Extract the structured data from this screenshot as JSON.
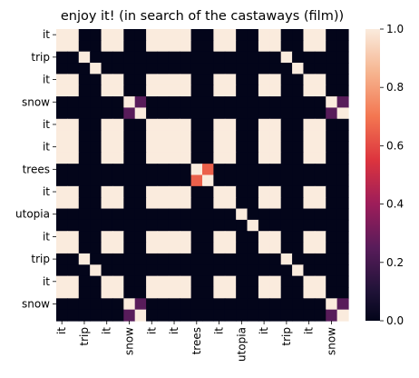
{
  "chart_data": {
    "type": "heatmap",
    "title": "enjoy it! (in search of the castaways (film))",
    "xlabel": "",
    "ylabel": "",
    "x_categories": [
      "it",
      "trip",
      "it",
      "snow",
      "it",
      "it",
      "trees",
      "it",
      "utopia",
      "it",
      "trip",
      "it",
      "snow"
    ],
    "x_tick_labels": [
      "it",
      "trip",
      "it",
      "snow",
      "it",
      "it",
      "trees",
      "it",
      "utopia",
      "it",
      "trip",
      "it",
      "snow"
    ],
    "y_categories": [
      "it",
      "trip",
      "it",
      "snow",
      "it",
      "it",
      "trees",
      "it",
      "utopia",
      "it",
      "trip",
      "it",
      "snow"
    ],
    "tokens": [
      "it",
      "it",
      "trip",
      "trip",
      "it",
      "it",
      "snow",
      "snow",
      "it",
      "it",
      "it",
      "it",
      "trees",
      "trees",
      "it",
      "it",
      "utopia",
      "utopia",
      "it",
      "it",
      "trip",
      "trip",
      "it",
      "it",
      "snow",
      "snow"
    ],
    "values": [
      [
        1,
        1,
        0,
        0,
        1,
        1,
        0,
        0,
        1,
        1,
        1,
        1,
        0,
        0,
        1,
        1,
        0,
        0,
        1,
        1,
        0,
        0,
        1,
        1,
        0,
        0
      ],
      [
        1,
        1,
        0,
        0,
        1,
        1,
        0,
        0,
        1,
        1,
        1,
        1,
        0,
        0,
        1,
        1,
        0,
        0,
        1,
        1,
        0,
        0,
        1,
        1,
        0,
        0
      ],
      [
        0,
        0,
        1,
        0,
        0,
        0,
        0,
        0,
        0,
        0,
        0,
        0,
        0,
        0,
        0,
        0,
        0,
        0,
        0,
        0,
        1,
        0,
        0,
        0,
        0,
        0
      ],
      [
        0,
        0,
        0,
        1,
        0,
        0,
        0,
        0,
        0,
        0,
        0,
        0,
        0,
        0,
        0,
        0,
        0,
        0,
        0,
        0,
        0,
        1,
        0,
        0,
        0,
        0
      ],
      [
        1,
        1,
        0,
        0,
        1,
        1,
        0,
        0,
        1,
        1,
        1,
        1,
        0,
        0,
        1,
        1,
        0,
        0,
        1,
        1,
        0,
        0,
        1,
        1,
        0,
        0
      ],
      [
        1,
        1,
        0,
        0,
        1,
        1,
        0,
        0,
        1,
        1,
        1,
        1,
        0,
        0,
        1,
        1,
        0,
        0,
        1,
        1,
        0,
        0,
        1,
        1,
        0,
        0
      ],
      [
        0,
        0,
        0,
        0,
        0,
        0,
        1,
        0.25,
        0,
        0,
        0,
        0,
        0,
        0,
        0,
        0,
        0,
        0,
        0,
        0,
        0,
        0,
        0,
        0,
        1,
        0.25
      ],
      [
        0,
        0,
        0,
        0,
        0,
        0,
        0.25,
        1,
        0,
        0,
        0,
        0,
        0,
        0,
        0,
        0,
        0,
        0,
        0,
        0,
        0,
        0,
        0,
        0,
        0.25,
        1
      ],
      [
        1,
        1,
        0,
        0,
        1,
        1,
        0,
        0,
        1,
        1,
        1,
        1,
        0,
        0,
        1,
        1,
        0,
        0,
        1,
        1,
        0,
        0,
        1,
        1,
        0,
        0
      ],
      [
        1,
        1,
        0,
        0,
        1,
        1,
        0,
        0,
        1,
        1,
        1,
        1,
        0,
        0,
        1,
        1,
        0,
        0,
        1,
        1,
        0,
        0,
        1,
        1,
        0,
        0
      ],
      [
        1,
        1,
        0,
        0,
        1,
        1,
        0,
        0,
        1,
        1,
        1,
        1,
        0,
        0,
        1,
        1,
        0,
        0,
        1,
        1,
        0,
        0,
        1,
        1,
        0,
        0
      ],
      [
        1,
        1,
        0,
        0,
        1,
        1,
        0,
        0,
        1,
        1,
        1,
        1,
        0,
        0,
        1,
        1,
        0,
        0,
        1,
        1,
        0,
        0,
        1,
        1,
        0,
        0
      ],
      [
        0,
        0,
        0,
        0,
        0,
        0,
        0,
        0,
        0,
        0,
        0,
        0,
        1,
        0.65,
        0,
        0,
        0,
        0,
        0,
        0,
        0,
        0,
        0,
        0,
        0,
        0
      ],
      [
        0,
        0,
        0,
        0,
        0,
        0,
        0,
        0,
        0,
        0,
        0,
        0,
        0.65,
        1,
        0,
        0,
        0,
        0,
        0,
        0,
        0,
        0,
        0,
        0,
        0,
        0
      ],
      [
        1,
        1,
        0,
        0,
        1,
        1,
        0,
        0,
        1,
        1,
        1,
        1,
        0,
        0,
        1,
        1,
        0,
        0,
        1,
        1,
        0,
        0,
        1,
        1,
        0,
        0
      ],
      [
        1,
        1,
        0,
        0,
        1,
        1,
        0,
        0,
        1,
        1,
        1,
        1,
        0,
        0,
        1,
        1,
        0,
        0,
        1,
        1,
        0,
        0,
        1,
        1,
        0,
        0
      ],
      [
        0,
        0,
        0,
        0,
        0,
        0,
        0,
        0,
        0,
        0,
        0,
        0,
        0,
        0,
        0,
        0,
        1,
        0,
        0,
        0,
        0,
        0,
        0,
        0,
        0,
        0
      ],
      [
        0,
        0,
        0,
        0,
        0,
        0,
        0,
        0,
        0,
        0,
        0,
        0,
        0,
        0,
        0,
        0,
        0,
        1,
        0,
        0,
        0,
        0,
        0,
        0,
        0,
        0
      ],
      [
        1,
        1,
        0,
        0,
        1,
        1,
        0,
        0,
        1,
        1,
        1,
        1,
        0,
        0,
        1,
        1,
        0,
        0,
        1,
        1,
        0,
        0,
        1,
        1,
        0,
        0
      ],
      [
        1,
        1,
        0,
        0,
        1,
        1,
        0,
        0,
        1,
        1,
        1,
        1,
        0,
        0,
        1,
        1,
        0,
        0,
        1,
        1,
        0,
        0,
        1,
        1,
        0,
        0
      ],
      [
        0,
        0,
        1,
        0,
        0,
        0,
        0,
        0,
        0,
        0,
        0,
        0,
        0,
        0,
        0,
        0,
        0,
        0,
        0,
        0,
        1,
        0,
        0,
        0,
        0,
        0
      ],
      [
        0,
        0,
        0,
        1,
        0,
        0,
        0,
        0,
        0,
        0,
        0,
        0,
        0,
        0,
        0,
        0,
        0,
        0,
        0,
        0,
        0,
        1,
        0,
        0,
        0,
        0
      ],
      [
        1,
        1,
        0,
        0,
        1,
        1,
        0,
        0,
        1,
        1,
        1,
        1,
        0,
        0,
        1,
        1,
        0,
        0,
        1,
        1,
        0,
        0,
        1,
        1,
        0,
        0
      ],
      [
        1,
        1,
        0,
        0,
        1,
        1,
        0,
        0,
        1,
        1,
        1,
        1,
        0,
        0,
        1,
        1,
        0,
        0,
        1,
        1,
        0,
        0,
        1,
        1,
        0,
        0
      ],
      [
        0,
        0,
        0,
        0,
        0,
        0,
        1,
        0.25,
        0,
        0,
        0,
        0,
        0,
        0,
        0,
        0,
        0,
        0,
        0,
        0,
        0,
        0,
        0,
        0,
        1,
        0.25
      ],
      [
        0,
        0,
        0,
        0,
        0,
        0,
        0.25,
        1,
        0,
        0,
        0,
        0,
        0,
        0,
        0,
        0,
        0,
        0,
        0,
        0,
        0,
        0,
        0,
        0,
        0.25,
        1
      ]
    ],
    "colorbar": {
      "range": [
        0.0,
        1.0
      ],
      "ticks": [
        "0.0",
        "0.2",
        "0.4",
        "0.6",
        "0.8",
        "1.0"
      ],
      "colormap": "rocket"
    },
    "grid": false,
    "legend": "colorbar-right"
  }
}
